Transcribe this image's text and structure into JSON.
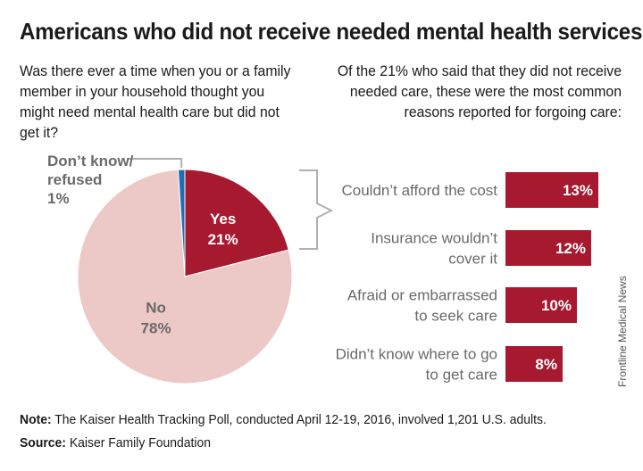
{
  "title": "Americans who did not receive needed mental health services",
  "question_left": "Was there ever a time when you or a family member in your household thought you might need mental health care but did not get it?",
  "question_right": "Of the 21% who said that they did not receive needed care, these were the most common reasons reported for forgoing care:",
  "chart_data": [
    {
      "type": "pie",
      "slices": [
        {
          "label": "Yes",
          "value": 21,
          "value_label": "21%",
          "color": "#a6192e"
        },
        {
          "label": "No",
          "value": 78,
          "value_label": "78%",
          "color": "#ecc8c6"
        },
        {
          "label": "Don’t know/ refused",
          "label_lines": [
            "Don’t know/",
            "refused"
          ],
          "value": 1,
          "value_label": "1%",
          "color": "#1f6eb5"
        }
      ]
    },
    {
      "type": "bar",
      "orientation": "horizontal",
      "categories": [
        "Couldn’t afford the cost",
        "Insurance wouldn’t cover it",
        "Afraid or embarrassed to seek care",
        "Didn’t know where to go to get care"
      ],
      "category_lines": [
        [
          "Couldn’t afford the cost"
        ],
        [
          "Insurance wouldn’t",
          "cover it"
        ],
        [
          "Afraid or embarrassed",
          "to seek care"
        ],
        [
          "Didn’t know where to go",
          "to get care"
        ]
      ],
      "values": [
        13,
        12,
        10,
        8
      ],
      "value_labels": [
        "13%",
        "12%",
        "10%",
        "8%"
      ],
      "color": "#a6192e"
    }
  ],
  "note_label": "Note:",
  "note_text": " The Kaiser Health Tracking Poll, conducted April 12-19, 2016, involved 1,201 U.S. adults.",
  "source_label": "Source:",
  "source_text": " Kaiser Family Foundation",
  "credit": "Frontline Medical News"
}
